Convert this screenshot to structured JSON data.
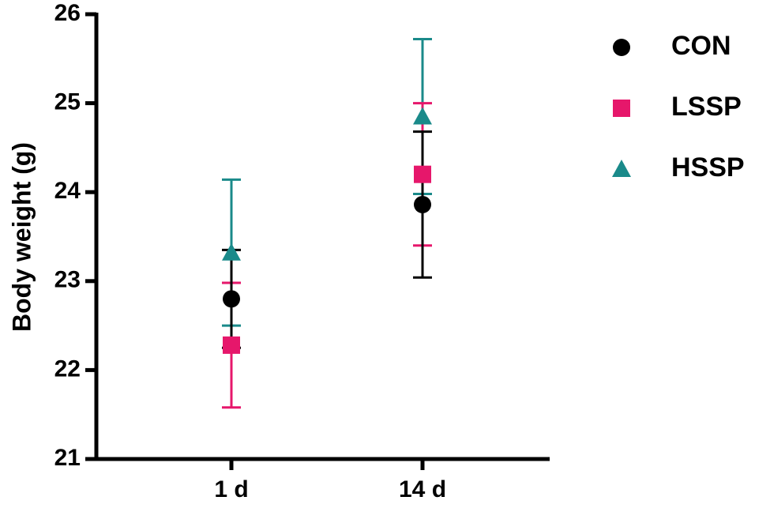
{
  "chart_data": {
    "type": "scatter",
    "y_label": "Body weight (g)",
    "categories": [
      "1 d",
      "14 d"
    ],
    "series": [
      {
        "name": "CON",
        "color": "#000000",
        "marker": "circle",
        "values": [
          22.8,
          23.86
        ],
        "errors": [
          0.55,
          0.82
        ]
      },
      {
        "name": "LSSP",
        "color": "#e6176b",
        "marker": "square",
        "values": [
          22.28,
          24.2
        ],
        "errors": [
          0.7,
          0.8
        ]
      },
      {
        "name": "HSSP",
        "color": "#1a8a8a",
        "marker": "triangle",
        "values": [
          23.32,
          24.85
        ],
        "errors": [
          0.82,
          0.87
        ]
      }
    ],
    "ylim": [
      21,
      26
    ],
    "yticks": [
      21,
      22,
      23,
      24,
      25,
      26
    ]
  }
}
